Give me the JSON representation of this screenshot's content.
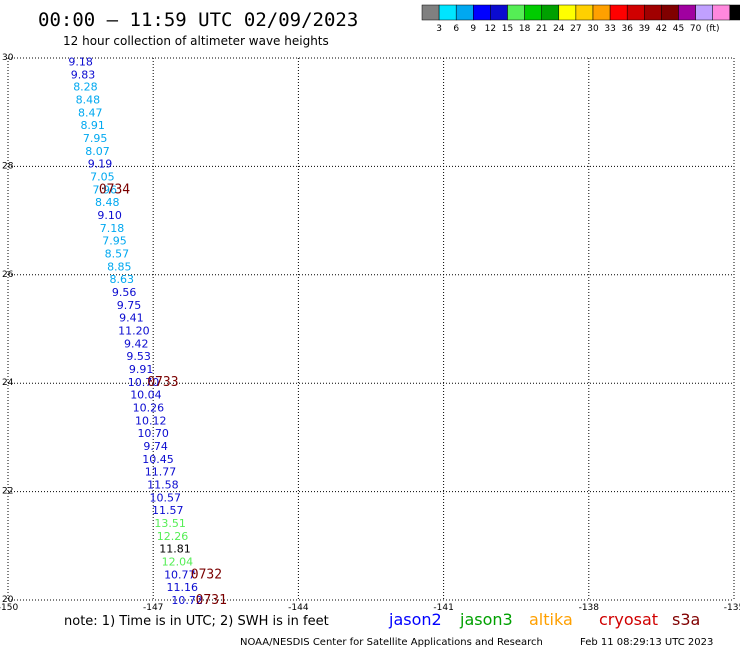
{
  "title": "00:00 — 11:59 UTC 02/09/2023",
  "subtitle": "12 hour collection of altimeter wave heights",
  "colorbar": {
    "colors": [
      "#808080",
      "#00e5ff",
      "#00a8f0",
      "#0000ff",
      "#0b0bd0",
      "#55ee55",
      "#00cc00",
      "#00a000",
      "#ffff00",
      "#ffd000",
      "#ffa000",
      "#ff0000",
      "#d00000",
      "#a00000",
      "#800000",
      "#a000a0",
      "#c0a0ff",
      "#ff88dd",
      "#000000"
    ],
    "labels": [
      "3",
      "6",
      "9",
      "12",
      "15",
      "18",
      "21",
      "24",
      "27",
      "30",
      "33",
      "36",
      "39",
      "42",
      "45",
      "70",
      "(ft)"
    ]
  },
  "chart_data": {
    "type": "scatter",
    "xlim": [
      -150,
      -135
    ],
    "ylim": [
      20,
      30
    ],
    "x_ticks": [
      "-150",
      "-147",
      "-144",
      "-141",
      "-138",
      "-135"
    ],
    "y_ticks": [
      "30",
      "28",
      "26",
      "24",
      "22",
      "20"
    ],
    "grid": true,
    "points": [
      {
        "x": -148.5,
        "y": 29.94,
        "label": "9.18",
        "color": "#0b0bd0"
      },
      {
        "x": -148.45,
        "y": 29.7,
        "label": "9.83",
        "color": "#0b0bd0"
      },
      {
        "x": -148.4,
        "y": 29.47,
        "label": "8.28",
        "color": "#00a8f0"
      },
      {
        "x": -148.35,
        "y": 29.23,
        "label": "8.48",
        "color": "#00a8f0"
      },
      {
        "x": -148.3,
        "y": 28.99,
        "label": "8.47",
        "color": "#00a8f0"
      },
      {
        "x": -148.25,
        "y": 28.76,
        "label": "8.91",
        "color": "#00a8f0"
      },
      {
        "x": -148.2,
        "y": 28.52,
        "label": "7.95",
        "color": "#00a8f0"
      },
      {
        "x": -148.15,
        "y": 28.28,
        "label": "8.07",
        "color": "#00a8f0"
      },
      {
        "x": -148.1,
        "y": 28.05,
        "label": "9.19",
        "color": "#0b0bd0"
      },
      {
        "x": -148.05,
        "y": 27.81,
        "label": "7.05",
        "color": "#00a8f0"
      },
      {
        "x": -148.0,
        "y": 27.57,
        "label": "7.96",
        "color": "#00a8f0"
      },
      {
        "x": -147.95,
        "y": 27.34,
        "label": "8.48",
        "color": "#00a8f0"
      },
      {
        "x": -147.9,
        "y": 27.1,
        "label": "9.10",
        "color": "#0b0bd0"
      },
      {
        "x": -147.85,
        "y": 26.86,
        "label": "7.18",
        "color": "#00a8f0"
      },
      {
        "x": -147.8,
        "y": 26.63,
        "label": "7.95",
        "color": "#00a8f0"
      },
      {
        "x": -147.75,
        "y": 26.39,
        "label": "8.57",
        "color": "#00a8f0"
      },
      {
        "x": -147.7,
        "y": 26.15,
        "label": "8.85",
        "color": "#00a8f0"
      },
      {
        "x": -147.65,
        "y": 25.92,
        "label": "8.63",
        "color": "#00a8f0"
      },
      {
        "x": -147.6,
        "y": 25.68,
        "label": "9.56",
        "color": "#0b0bd0"
      },
      {
        "x": -147.5,
        "y": 25.44,
        "label": "9.75",
        "color": "#0b0bd0"
      },
      {
        "x": -147.45,
        "y": 25.21,
        "label": "9.41",
        "color": "#0b0bd0"
      },
      {
        "x": -147.4,
        "y": 24.97,
        "label": "11.20",
        "color": "#0b0bd0"
      },
      {
        "x": -147.35,
        "y": 24.73,
        "label": "9.42",
        "color": "#0b0bd0"
      },
      {
        "x": -147.3,
        "y": 24.5,
        "label": "9.53",
        "color": "#0b0bd0"
      },
      {
        "x": -147.25,
        "y": 24.26,
        "label": "9.91",
        "color": "#0b0bd0"
      },
      {
        "x": -147.2,
        "y": 24.02,
        "label": "10.70",
        "color": "#0b0bd0"
      },
      {
        "x": -147.15,
        "y": 23.79,
        "label": "10.04",
        "color": "#0b0bd0"
      },
      {
        "x": -147.1,
        "y": 23.55,
        "label": "10.26",
        "color": "#0b0bd0"
      },
      {
        "x": -147.05,
        "y": 23.31,
        "label": "10.12",
        "color": "#0b0bd0"
      },
      {
        "x": -147.0,
        "y": 23.08,
        "label": "10.70",
        "color": "#0b0bd0"
      },
      {
        "x": -146.95,
        "y": 22.84,
        "label": "9.74",
        "color": "#0b0bd0"
      },
      {
        "x": -146.9,
        "y": 22.6,
        "label": "10.45",
        "color": "#0b0bd0"
      },
      {
        "x": -146.85,
        "y": 22.37,
        "label": "11.77",
        "color": "#0b0bd0"
      },
      {
        "x": -146.8,
        "y": 22.13,
        "label": "11.58",
        "color": "#0b0bd0"
      },
      {
        "x": -146.75,
        "y": 21.89,
        "label": "10.57",
        "color": "#0b0bd0"
      },
      {
        "x": -146.7,
        "y": 21.66,
        "label": "11.57",
        "color": "#0b0bd0"
      },
      {
        "x": -146.65,
        "y": 21.42,
        "label": "13.51",
        "color": "#55ee55"
      },
      {
        "x": -146.6,
        "y": 21.18,
        "label": "12.26",
        "color": "#55ee55"
      },
      {
        "x": -146.55,
        "y": 20.95,
        "label": "11.81",
        "color": "#000000"
      },
      {
        "x": -146.5,
        "y": 20.71,
        "label": "12.04",
        "color": "#55ee55"
      },
      {
        "x": -146.45,
        "y": 20.47,
        "label": "10.77",
        "color": "#0b0bd0"
      },
      {
        "x": -146.4,
        "y": 20.24,
        "label": "11.16",
        "color": "#0b0bd0"
      },
      {
        "x": -146.3,
        "y": 20.0,
        "label": "10.72",
        "color": "#0b0bd0"
      }
    ],
    "time_labels": [
      {
        "x": -147.8,
        "y": 27.57,
        "label": "0734"
      },
      {
        "x": -146.8,
        "y": 24.02,
        "label": "0733"
      },
      {
        "x": -145.9,
        "y": 20.47,
        "label": "0732"
      },
      {
        "x": -145.8,
        "y": 20.0,
        "label": "0731"
      }
    ]
  },
  "note": "note:  1) Time is in UTC;  2) SWH is in feet",
  "satellites": [
    {
      "name": "jason2",
      "color": "#0000ff"
    },
    {
      "name": "jason3",
      "color": "#00a000"
    },
    {
      "name": "altika",
      "color": "#ffa000"
    },
    {
      "name": "cryosat",
      "color": "#d00000"
    },
    {
      "name": "s3a",
      "color": "#800000"
    }
  ],
  "footer": {
    "center": "NOAA/NESDIS Center for Satellite Applications and Research",
    "timestamp": "Feb 11 08:29:13 UTC 2023"
  }
}
